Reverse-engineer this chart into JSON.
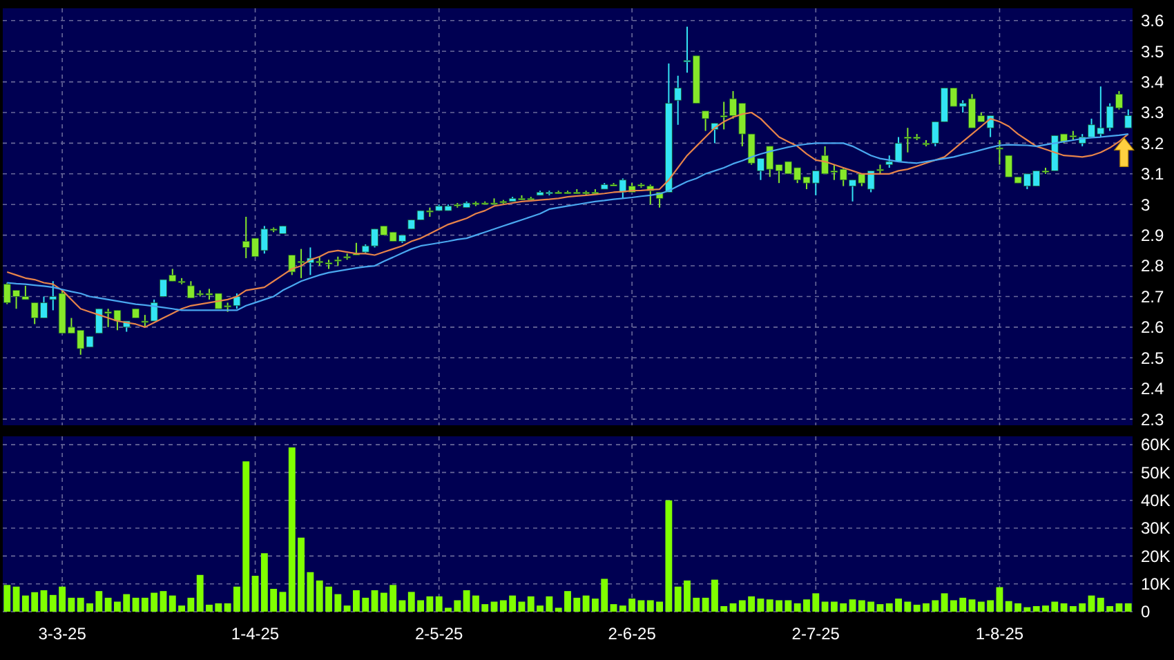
{
  "chart_data": [
    {
      "type": "candlestick",
      "categories": [
        null,
        null,
        null,
        null,
        null,
        null,
        null,
        null,
        null,
        null,
        null,
        null,
        null,
        null,
        null,
        null,
        null,
        null,
        null,
        null,
        null,
        null,
        null,
        null,
        null,
        null,
        null,
        null,
        null,
        null,
        null,
        null,
        null,
        null,
        null,
        null,
        null,
        null,
        null,
        null,
        null,
        null,
        null,
        null,
        null,
        null,
        null,
        null,
        null,
        null,
        null,
        null,
        null,
        null,
        null,
        null,
        null,
        null,
        null,
        null,
        null,
        null,
        null,
        null,
        null,
        null,
        null,
        null,
        null,
        null,
        null,
        null,
        null,
        null,
        null,
        null,
        null,
        null,
        null,
        null,
        null,
        null,
        null,
        null,
        null,
        null,
        null,
        null,
        null,
        null,
        null,
        null,
        null,
        null,
        null,
        null,
        null,
        null,
        null,
        null,
        null,
        null,
        null,
        null,
        null,
        null,
        null,
        null,
        null,
        null,
        null,
        null,
        null,
        null,
        null,
        null,
        null,
        null,
        null,
        null,
        null,
        null,
        null
      ],
      "ohlc": [
        [
          2.74,
          2.745,
          2.675,
          2.68
        ],
        [
          2.72,
          2.72,
          2.66,
          2.7
        ],
        [
          2.7,
          2.735,
          2.69,
          2.69
        ],
        [
          2.68,
          2.68,
          2.61,
          2.63
        ],
        [
          2.63,
          2.7,
          2.63,
          2.68
        ],
        [
          2.69,
          2.75,
          2.655,
          2.7
        ],
        [
          2.71,
          2.72,
          2.58,
          2.58
        ],
        [
          2.6,
          2.63,
          2.58,
          2.58
        ],
        [
          2.59,
          2.59,
          2.51,
          2.53
        ],
        [
          2.535,
          2.57,
          2.535,
          2.57
        ],
        [
          2.58,
          2.66,
          2.58,
          2.66
        ],
        [
          2.65,
          2.66,
          2.6,
          2.645
        ],
        [
          2.655,
          2.655,
          2.59,
          2.62
        ],
        [
          2.6,
          2.62,
          2.585,
          2.62
        ],
        [
          2.66,
          2.66,
          2.63,
          2.63
        ],
        [
          2.62,
          2.64,
          2.6,
          2.62
        ],
        [
          2.62,
          2.69,
          2.62,
          2.68
        ],
        [
          2.7,
          2.755,
          2.7,
          2.755
        ],
        [
          2.77,
          2.79,
          2.75,
          2.75
        ],
        [
          2.75,
          2.76,
          2.74,
          2.75
        ],
        [
          2.735,
          2.75,
          2.695,
          2.695
        ],
        [
          2.71,
          2.72,
          2.7,
          2.71
        ],
        [
          2.71,
          2.725,
          2.69,
          2.705
        ],
        [
          2.71,
          2.71,
          2.66,
          2.66
        ],
        [
          2.67,
          2.68,
          2.65,
          2.67
        ],
        [
          2.67,
          2.71,
          2.66,
          2.7
        ],
        [
          2.88,
          2.96,
          2.825,
          2.86
        ],
        [
          2.89,
          2.89,
          2.83,
          2.83
        ],
        [
          2.85,
          2.93,
          2.84,
          2.92
        ],
        [
          2.92,
          2.925,
          2.91,
          2.92
        ],
        [
          2.905,
          2.93,
          2.905,
          2.93
        ],
        [
          2.835,
          2.835,
          2.77,
          2.78
        ],
        [
          2.815,
          2.855,
          2.76,
          2.815
        ],
        [
          2.81,
          2.86,
          2.77,
          2.825
        ],
        [
          2.815,
          2.83,
          2.8,
          2.815
        ],
        [
          2.81,
          2.82,
          2.79,
          2.81
        ],
        [
          2.82,
          2.83,
          2.8,
          2.82
        ],
        [
          2.83,
          2.84,
          2.82,
          2.83
        ],
        [
          2.84,
          2.875,
          2.835,
          2.835
        ],
        [
          2.845,
          2.87,
          2.84,
          2.865
        ],
        [
          2.865,
          2.92,
          2.86,
          2.92
        ],
        [
          2.93,
          2.93,
          2.9,
          2.9
        ],
        [
          2.91,
          2.91,
          2.88,
          2.88
        ],
        [
          2.88,
          2.9,
          2.875,
          2.9
        ],
        [
          2.92,
          2.95,
          2.92,
          2.95
        ],
        [
          2.95,
          2.98,
          2.95,
          2.98
        ],
        [
          2.98,
          2.99,
          2.96,
          2.98
        ],
        [
          2.98,
          3.0,
          2.98,
          2.995
        ],
        [
          2.98,
          3.0,
          2.98,
          2.995
        ],
        [
          3.0,
          3.005,
          2.99,
          3.0
        ],
        [
          2.99,
          3.01,
          2.99,
          3.005
        ],
        [
          3.005,
          3.01,
          2.995,
          3.005
        ],
        [
          3.005,
          3.01,
          3.0,
          3.005
        ],
        [
          3.005,
          3.02,
          3.0,
          3.005
        ],
        [
          3.01,
          3.015,
          3.0,
          3.01
        ],
        [
          3.01,
          3.025,
          3.01,
          3.02
        ],
        [
          3.02,
          3.03,
          3.015,
          3.02
        ],
        [
          3.02,
          3.025,
          3.015,
          3.02
        ],
        [
          3.03,
          3.045,
          3.03,
          3.04
        ],
        [
          3.035,
          3.045,
          3.03,
          3.04
        ],
        [
          3.04,
          3.045,
          3.035,
          3.04
        ],
        [
          3.04,
          3.045,
          3.035,
          3.04
        ],
        [
          3.04,
          3.05,
          3.035,
          3.04
        ],
        [
          3.04,
          3.045,
          3.03,
          3.035
        ],
        [
          3.04,
          3.05,
          3.035,
          3.04
        ],
        [
          3.05,
          3.07,
          3.05,
          3.065
        ],
        [
          3.065,
          3.07,
          3.06,
          3.06
        ],
        [
          3.04,
          3.085,
          3.02,
          3.08
        ],
        [
          3.06,
          3.07,
          3.04,
          3.04
        ],
        [
          3.065,
          3.07,
          3.055,
          3.065
        ],
        [
          3.06,
          3.065,
          3.0,
          3.045
        ],
        [
          3.04,
          3.04,
          2.99,
          3.02
        ],
        [
          3.04,
          3.46,
          3.04,
          3.33
        ],
        [
          3.34,
          3.42,
          3.26,
          3.38
        ],
        [
          3.465,
          3.58,
          3.43,
          3.47
        ],
        [
          3.485,
          3.485,
          3.33,
          3.33
        ],
        [
          3.305,
          3.305,
          3.24,
          3.28
        ],
        [
          3.245,
          3.265,
          3.2,
          3.265
        ],
        [
          3.29,
          3.335,
          3.245,
          3.29
        ],
        [
          3.345,
          3.37,
          3.28,
          3.29
        ],
        [
          3.33,
          3.33,
          3.19,
          3.23
        ],
        [
          3.23,
          3.23,
          3.13,
          3.135
        ],
        [
          3.11,
          3.15,
          3.08,
          3.15
        ],
        [
          3.19,
          3.19,
          3.09,
          3.115
        ],
        [
          3.13,
          3.13,
          3.07,
          3.11
        ],
        [
          3.14,
          3.14,
          3.1,
          3.1
        ],
        [
          3.12,
          3.12,
          3.07,
          3.08
        ],
        [
          3.09,
          3.09,
          3.05,
          3.07
        ],
        [
          3.07,
          3.11,
          3.03,
          3.11
        ],
        [
          3.16,
          3.19,
          3.1,
          3.1
        ],
        [
          3.11,
          3.13,
          3.08,
          3.105
        ],
        [
          3.115,
          3.12,
          3.06,
          3.08
        ],
        [
          3.06,
          3.08,
          3.01,
          3.08
        ],
        [
          3.1,
          3.1,
          3.06,
          3.07
        ],
        [
          3.05,
          3.11,
          3.04,
          3.11
        ],
        [
          3.115,
          3.13,
          3.1,
          3.115
        ],
        [
          3.13,
          3.16,
          3.12,
          3.14
        ],
        [
          3.14,
          3.22,
          3.14,
          3.2
        ],
        [
          3.22,
          3.25,
          3.17,
          3.22
        ],
        [
          3.22,
          3.23,
          3.21,
          3.215
        ],
        [
          3.2,
          3.21,
          3.19,
          3.2
        ],
        [
          3.2,
          3.27,
          3.19,
          3.27
        ],
        [
          3.27,
          3.38,
          3.27,
          3.38
        ],
        [
          3.38,
          3.38,
          3.32,
          3.32
        ],
        [
          3.32,
          3.34,
          3.3,
          3.33
        ],
        [
          3.345,
          3.36,
          3.25,
          3.25
        ],
        [
          3.29,
          3.3,
          3.27,
          3.27
        ],
        [
          3.25,
          3.29,
          3.22,
          3.29
        ],
        [
          3.185,
          3.21,
          3.13,
          3.185
        ],
        [
          3.16,
          3.16,
          3.09,
          3.09
        ],
        [
          3.09,
          3.09,
          3.07,
          3.07
        ],
        [
          3.06,
          3.1,
          3.05,
          3.1
        ],
        [
          3.06,
          3.11,
          3.06,
          3.11
        ],
        [
          3.11,
          3.12,
          3.1,
          3.11
        ],
        [
          3.11,
          3.225,
          3.11,
          3.225
        ],
        [
          3.23,
          3.23,
          3.2,
          3.205
        ],
        [
          3.225,
          3.24,
          3.21,
          3.225
        ],
        [
          3.2,
          3.23,
          3.19,
          3.22
        ],
        [
          3.22,
          3.28,
          3.22,
          3.26
        ],
        [
          3.23,
          3.385,
          3.22,
          3.25
        ],
        [
          3.25,
          3.33,
          3.24,
          3.32
        ],
        [
          3.36,
          3.37,
          3.31,
          3.315
        ],
        [
          3.25,
          3.31,
          3.25,
          3.29
        ]
      ],
      "series": [
        {
          "type": "line",
          "color": "#e8844a",
          "values": [
            2.78,
            2.77,
            2.76,
            2.755,
            2.745,
            2.74,
            2.72,
            2.69,
            2.66,
            2.65,
            2.64,
            2.63,
            2.62,
            2.615,
            2.61,
            2.6,
            2.615,
            2.63,
            2.645,
            2.66,
            2.67,
            2.675,
            2.68,
            2.685,
            2.69,
            2.7,
            2.72,
            2.725,
            2.73,
            2.75,
            2.77,
            2.79,
            2.8,
            2.82,
            2.83,
            2.845,
            2.85,
            2.845,
            2.84,
            2.84,
            2.835,
            2.845,
            2.855,
            2.865,
            2.88,
            2.89,
            2.905,
            2.92,
            2.935,
            2.945,
            2.955,
            2.97,
            2.98,
            2.995,
            3.0,
            3.005,
            3.01,
            3.012,
            3.015,
            3.017,
            3.02,
            3.025,
            3.028,
            3.03,
            3.033,
            3.036,
            3.04,
            3.042,
            3.045,
            3.046,
            3.048,
            3.05,
            3.08,
            3.12,
            3.16,
            3.19,
            3.22,
            3.25,
            3.27,
            3.285,
            3.295,
            3.3,
            3.28,
            3.25,
            3.22,
            3.205,
            3.19,
            3.165,
            3.145,
            3.14,
            3.13,
            3.12,
            3.11,
            3.1,
            3.1,
            3.1,
            3.1,
            3.11,
            3.115,
            3.125,
            3.135,
            3.145,
            3.155,
            3.18,
            3.205,
            3.23,
            3.255,
            3.28,
            3.27,
            3.255,
            3.23,
            3.21,
            3.19,
            3.18,
            3.17,
            3.16,
            3.158,
            3.155,
            3.16,
            3.17,
            3.185,
            3.205,
            3.23
          ]
        },
        {
          "type": "line",
          "color": "#4aa8f0",
          "values": [
            2.745,
            2.742,
            2.74,
            2.737,
            2.734,
            2.73,
            2.723,
            2.716,
            2.71,
            2.7,
            2.695,
            2.69,
            2.685,
            2.68,
            2.675,
            2.672,
            2.668,
            2.664,
            2.66,
            2.655,
            2.655,
            2.655,
            2.655,
            2.655,
            2.655,
            2.655,
            2.67,
            2.68,
            2.69,
            2.7,
            2.72,
            2.735,
            2.75,
            2.76,
            2.77,
            2.778,
            2.783,
            2.788,
            2.793,
            2.797,
            2.8,
            2.815,
            2.828,
            2.842,
            2.855,
            2.865,
            2.87,
            2.875,
            2.88,
            2.886,
            2.89,
            2.9,
            2.91,
            2.92,
            2.93,
            2.94,
            2.95,
            2.96,
            2.97,
            2.985,
            2.99,
            2.995,
            3.0,
            3.005,
            3.01,
            3.013,
            3.017,
            3.02,
            3.023,
            3.027,
            3.03,
            3.035,
            3.045,
            3.06,
            3.075,
            3.085,
            3.1,
            3.11,
            3.12,
            3.133,
            3.143,
            3.155,
            3.165,
            3.173,
            3.18,
            3.187,
            3.193,
            3.197,
            3.2,
            3.2,
            3.2,
            3.2,
            3.19,
            3.175,
            3.16,
            3.15,
            3.145,
            3.14,
            3.137,
            3.135,
            3.14,
            3.145,
            3.15,
            3.155,
            3.163,
            3.17,
            3.178,
            3.186,
            3.193,
            3.195,
            3.194,
            3.193,
            3.19,
            3.195,
            3.2,
            3.205,
            3.21,
            3.215,
            3.218,
            3.22,
            3.223,
            3.226,
            3.23
          ]
        }
      ],
      "ylim": [
        2.28,
        3.64
      ],
      "yticks": [
        2.3,
        2.4,
        2.5,
        2.6,
        2.7,
        2.8,
        2.9,
        3,
        3.1,
        3.2,
        3.3,
        3.4,
        3.5,
        3.6
      ],
      "grid": true,
      "tick_labels": "y"
    },
    {
      "type": "bar",
      "categories": [
        null,
        null,
        null,
        null,
        null,
        null,
        "3-3-25",
        null,
        null,
        null,
        null,
        null,
        null,
        null,
        null,
        null,
        null,
        null,
        null,
        null,
        null,
        null,
        null,
        null,
        null,
        null,
        null,
        "1-4-25",
        null,
        null,
        null,
        null,
        null,
        null,
        null,
        null,
        null,
        null,
        null,
        null,
        null,
        null,
        null,
        null,
        null,
        null,
        null,
        "2-5-25",
        null,
        null,
        null,
        null,
        null,
        null,
        null,
        null,
        null,
        null,
        null,
        null,
        null,
        null,
        null,
        null,
        null,
        null,
        null,
        null,
        "2-6-25",
        null,
        null,
        null,
        null,
        null,
        null,
        null,
        null,
        null,
        null,
        null,
        null,
        null,
        null,
        null,
        null,
        null,
        null,
        null,
        "2-7-25",
        null,
        null,
        null,
        null,
        null,
        null,
        null,
        null,
        null,
        null,
        null,
        null,
        null,
        null,
        null,
        null,
        null,
        null,
        null,
        "1-8-25",
        null,
        null,
        null,
        null,
        null,
        null,
        null,
        null,
        null,
        null,
        null,
        null,
        null,
        null
      ],
      "values": [
        9600,
        9000,
        5800,
        7000,
        7700,
        6000,
        9000,
        5000,
        5000,
        3000,
        7400,
        5000,
        3600,
        6300,
        5000,
        5000,
        6800,
        7400,
        5800,
        2200,
        5000,
        13200,
        2500,
        3000,
        3000,
        9000,
        54000,
        12900,
        21000,
        8200,
        7100,
        59000,
        26600,
        14200,
        11200,
        9000,
        6300,
        2200,
        7700,
        5000,
        7700,
        6800,
        9600,
        4100,
        7100,
        4100,
        5500,
        5500,
        1400,
        4100,
        7700,
        5800,
        2700,
        3600,
        4100,
        5800,
        3600,
        5500,
        2200,
        5500,
        1400,
        7400,
        5000,
        5800,
        4700,
        11800,
        2700,
        2200,
        4700,
        4100,
        4100,
        3600,
        40000,
        9000,
        11200,
        5000,
        5000,
        11500,
        2000,
        3000,
        4100,
        5500,
        4700,
        4400,
        4100,
        4100,
        3000,
        4400,
        6600,
        3600,
        3600,
        3000,
        4400,
        4100,
        3600,
        2700,
        3000,
        4700,
        3600,
        2500,
        3000,
        4100,
        6600,
        4100,
        5000,
        4400,
        3600,
        4100,
        8800,
        3800,
        3000,
        1600,
        2000,
        2200,
        3600,
        3000,
        2000,
        3000,
        5800,
        5000,
        2000,
        3000,
        3000
      ],
      "color": "#80ff00",
      "ylim": [
        0,
        63000
      ],
      "yticks": [
        0,
        {
          "value": 10000,
          "label": "10K"
        },
        {
          "value": 20000,
          "label": "20K"
        },
        {
          "value": 30000,
          "label": "30K"
        },
        {
          "value": 40000,
          "label": "40K"
        },
        {
          "value": 50000,
          "label": "50K"
        },
        {
          "value": 60000,
          "label": "60K"
        }
      ],
      "grid": true
    }
  ]
}
